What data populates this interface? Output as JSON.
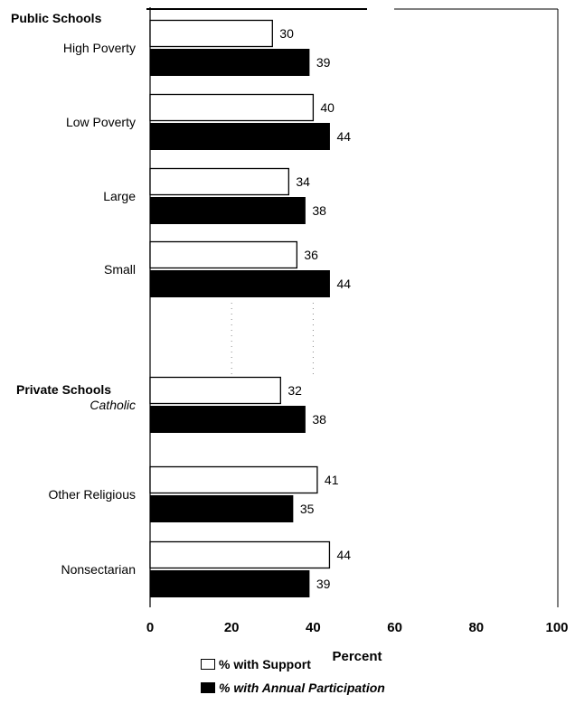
{
  "chart_data": {
    "type": "bar",
    "orientation": "horizontal",
    "groups": [
      {
        "label": "Public Schools",
        "categories": [
          "High Poverty",
          "Low Poverty",
          "Large",
          "Small"
        ]
      },
      {
        "label": "Private Schools",
        "categories": [
          "Catholic",
          "Other Religious",
          "Nonsectarian"
        ]
      }
    ],
    "categories": [
      "High Poverty",
      "Low Poverty",
      "Large",
      "Small",
      "Catholic",
      "Other Religious",
      "Nonsectarian"
    ],
    "series": [
      {
        "name": "% with Support",
        "values": [
          30,
          40,
          34,
          36,
          32,
          41,
          44
        ],
        "color": "#ffffff"
      },
      {
        "name": "% with Annual Participation",
        "values": [
          39,
          44,
          38,
          44,
          38,
          35,
          39
        ],
        "color": "#000000"
      }
    ],
    "xlabel": "Percent",
    "xlim": [
      0,
      100
    ],
    "xticks": [
      "0",
      "20",
      "40",
      "60",
      "80",
      "100"
    ],
    "legend_position": "bottom"
  }
}
